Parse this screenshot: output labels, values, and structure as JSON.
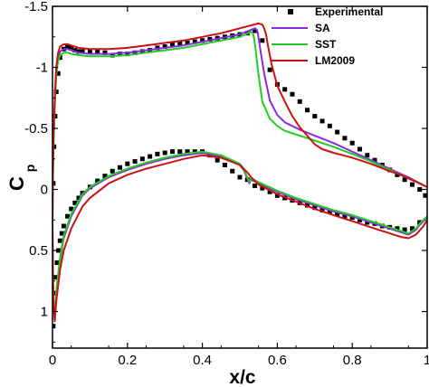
{
  "chart_data": {
    "type": "line",
    "xlabel": "x/c",
    "ylabel_main": "C",
    "ylabel_sub": "p",
    "xlim": [
      0,
      1
    ],
    "ylim": [
      1.3,
      -1.5
    ],
    "y_inverted": true,
    "grid": false,
    "legend_position": "top-right",
    "x_ticks": [
      0,
      0.2,
      0.4,
      0.6,
      0.8,
      1
    ],
    "x_tick_labels": [
      "0",
      "0.2",
      "0.4",
      "0.6",
      "0.8",
      "1"
    ],
    "y_ticks": [
      -1.5,
      -1,
      -0.5,
      0,
      0.5,
      1
    ],
    "y_tick_labels": [
      "-1.5",
      "-1",
      "-0.5",
      "0",
      "0.5",
      "1"
    ],
    "series": [
      {
        "name": "Experimental",
        "style": "markers",
        "color": "#000000",
        "x": [
          0.002,
          0.004,
          0.007,
          0.01,
          0.015,
          0.02,
          0.03,
          0.04,
          0.05,
          0.06,
          0.07,
          0.08,
          0.1,
          0.12,
          0.14,
          0.16,
          0.18,
          0.2,
          0.22,
          0.24,
          0.26,
          0.28,
          0.3,
          0.32,
          0.34,
          0.36,
          0.38,
          0.4,
          0.42,
          0.44,
          0.46,
          0.48,
          0.5,
          0.52,
          0.54,
          0.56,
          0.58,
          0.6,
          0.62,
          0.64,
          0.66,
          0.68,
          0.7,
          0.72,
          0.74,
          0.76,
          0.78,
          0.8,
          0.82,
          0.84,
          0.86,
          0.88,
          0.9,
          0.92,
          0.94,
          0.96,
          0.98,
          0.995,
          0.002,
          0.004,
          0.006,
          0.009,
          0.012,
          0.016,
          0.02,
          0.025,
          0.03,
          0.04,
          0.05,
          0.06,
          0.07,
          0.08,
          0.1,
          0.12,
          0.14,
          0.16,
          0.18,
          0.2,
          0.22,
          0.24,
          0.26,
          0.28,
          0.3,
          0.32,
          0.34,
          0.36,
          0.38,
          0.4,
          0.42,
          0.44,
          0.46,
          0.48,
          0.5,
          0.52,
          0.54,
          0.56,
          0.58,
          0.6,
          0.62,
          0.64,
          0.66,
          0.68,
          0.7,
          0.72,
          0.74,
          0.76,
          0.78,
          0.8,
          0.82,
          0.84,
          0.86,
          0.88,
          0.9,
          0.92,
          0.94,
          0.96,
          0.98
        ],
        "y": [
          -0.05,
          -0.35,
          -0.6,
          -0.8,
          -0.95,
          -1.08,
          -1.15,
          -1.17,
          -1.16,
          -1.14,
          -1.13,
          -1.13,
          -1.13,
          -1.13,
          -1.12,
          -1.1,
          -1.11,
          -1.11,
          -1.12,
          -1.13,
          -1.14,
          -1.16,
          -1.17,
          -1.19,
          -1.2,
          -1.2,
          -1.21,
          -1.22,
          -1.23,
          -1.24,
          -1.25,
          -1.26,
          -1.27,
          -1.28,
          -1.3,
          -1.22,
          -0.98,
          -0.86,
          -0.82,
          -0.78,
          -0.72,
          -0.65,
          -0.6,
          -0.56,
          -0.52,
          -0.47,
          -0.42,
          -0.38,
          -0.33,
          -0.28,
          -0.24,
          -0.2,
          -0.16,
          -0.12,
          -0.08,
          -0.04,
          0.0,
          0.05,
          1.12,
          0.98,
          0.85,
          0.72,
          0.6,
          0.5,
          0.42,
          0.36,
          0.3,
          0.22,
          0.16,
          0.11,
          0.07,
          0.03,
          -0.02,
          -0.07,
          -0.11,
          -0.15,
          -0.18,
          -0.21,
          -0.23,
          -0.25,
          -0.27,
          -0.29,
          -0.3,
          -0.31,
          -0.31,
          -0.31,
          -0.31,
          -0.31,
          -0.28,
          -0.24,
          -0.2,
          -0.15,
          -0.1,
          -0.08,
          -0.03,
          -0.01,
          0.02,
          0.05,
          0.07,
          0.09,
          0.11,
          0.13,
          0.15,
          0.17,
          0.18,
          0.2,
          0.22,
          0.23,
          0.25,
          0.27,
          0.28,
          0.3,
          0.31,
          0.32,
          0.33,
          0.32,
          0.27
        ]
      },
      {
        "name": "SA",
        "style": "line",
        "color": "#8a2be2",
        "x": [
          1.0,
          0.98,
          0.95,
          0.92,
          0.9,
          0.85,
          0.8,
          0.75,
          0.7,
          0.66,
          0.62,
          0.6,
          0.58,
          0.565,
          0.556,
          0.551,
          0.548,
          0.545,
          0.54,
          0.5,
          0.45,
          0.4,
          0.35,
          0.3,
          0.25,
          0.2,
          0.15,
          0.1,
          0.07,
          0.05,
          0.04,
          0.03,
          0.02,
          0.015,
          0.01,
          0.006,
          0.003,
          0.001,
          0.0,
          0.001,
          0.003,
          0.006,
          0.01,
          0.02,
          0.03,
          0.05,
          0.08,
          0.1,
          0.15,
          0.2,
          0.25,
          0.3,
          0.35,
          0.4,
          0.45,
          0.5,
          0.51,
          0.52,
          0.525,
          0.53,
          0.55,
          0.6,
          0.65,
          0.7,
          0.75,
          0.8,
          0.85,
          0.9,
          0.93,
          0.95,
          0.97,
          0.98,
          1.0
        ],
        "y": [
          -0.02,
          -0.05,
          -0.1,
          -0.14,
          -0.17,
          -0.24,
          -0.31,
          -0.38,
          -0.44,
          -0.49,
          -0.55,
          -0.61,
          -0.73,
          -0.95,
          -1.12,
          -1.22,
          -1.28,
          -1.31,
          -1.32,
          -1.27,
          -1.24,
          -1.21,
          -1.18,
          -1.16,
          -1.14,
          -1.12,
          -1.11,
          -1.11,
          -1.12,
          -1.14,
          -1.15,
          -1.15,
          -1.13,
          -1.08,
          -0.95,
          -0.7,
          -0.4,
          -0.1,
          0.3,
          0.72,
          0.96,
          1.06,
          0.85,
          0.58,
          0.4,
          0.22,
          0.05,
          -0.01,
          -0.1,
          -0.16,
          -0.21,
          -0.25,
          -0.28,
          -0.3,
          -0.27,
          -0.2,
          -0.16,
          -0.09,
          -0.05,
          -0.08,
          -0.05,
          0.02,
          0.08,
          0.13,
          0.18,
          0.22,
          0.27,
          0.32,
          0.35,
          0.37,
          0.33,
          0.29,
          0.23
        ]
      },
      {
        "name": "SST",
        "style": "line",
        "color": "#22cc22",
        "x": [
          1.0,
          0.98,
          0.95,
          0.92,
          0.9,
          0.85,
          0.8,
          0.75,
          0.7,
          0.66,
          0.62,
          0.6,
          0.58,
          0.56,
          0.548,
          0.542,
          0.538,
          0.535,
          0.53,
          0.5,
          0.45,
          0.4,
          0.35,
          0.3,
          0.25,
          0.2,
          0.15,
          0.1,
          0.07,
          0.05,
          0.04,
          0.03,
          0.02,
          0.015,
          0.01,
          0.006,
          0.003,
          0.001,
          0.0,
          0.001,
          0.003,
          0.006,
          0.01,
          0.02,
          0.03,
          0.05,
          0.08,
          0.1,
          0.15,
          0.2,
          0.25,
          0.3,
          0.35,
          0.4,
          0.45,
          0.5,
          0.51,
          0.52,
          0.525,
          0.53,
          0.55,
          0.6,
          0.65,
          0.7,
          0.75,
          0.8,
          0.85,
          0.9,
          0.93,
          0.95,
          0.97,
          0.98,
          1.0
        ],
        "y": [
          -0.02,
          -0.05,
          -0.09,
          -0.13,
          -0.16,
          -0.23,
          -0.29,
          -0.35,
          -0.4,
          -0.44,
          -0.48,
          -0.52,
          -0.58,
          -0.72,
          -0.98,
          -1.15,
          -1.24,
          -1.28,
          -1.29,
          -1.25,
          -1.22,
          -1.19,
          -1.16,
          -1.14,
          -1.12,
          -1.1,
          -1.09,
          -1.09,
          -1.1,
          -1.11,
          -1.12,
          -1.12,
          -1.1,
          -1.05,
          -0.93,
          -0.68,
          -0.38,
          -0.08,
          0.32,
          0.72,
          0.95,
          1.05,
          0.84,
          0.56,
          0.38,
          0.2,
          0.04,
          -0.02,
          -0.11,
          -0.17,
          -0.22,
          -0.26,
          -0.29,
          -0.31,
          -0.28,
          -0.21,
          -0.17,
          -0.1,
          -0.06,
          -0.09,
          -0.06,
          0.01,
          0.07,
          0.12,
          0.17,
          0.21,
          0.26,
          0.31,
          0.34,
          0.36,
          0.32,
          0.28,
          0.22
        ]
      },
      {
        "name": "LM2009",
        "style": "line",
        "color": "#cc1111",
        "x": [
          1.0,
          0.98,
          0.95,
          0.92,
          0.9,
          0.85,
          0.8,
          0.75,
          0.72,
          0.7,
          0.68,
          0.66,
          0.64,
          0.62,
          0.6,
          0.585,
          0.575,
          0.57,
          0.565,
          0.56,
          0.55,
          0.5,
          0.45,
          0.4,
          0.35,
          0.3,
          0.25,
          0.2,
          0.15,
          0.1,
          0.07,
          0.05,
          0.04,
          0.03,
          0.02,
          0.015,
          0.01,
          0.006,
          0.003,
          0.001,
          0.0,
          0.001,
          0.003,
          0.006,
          0.01,
          0.02,
          0.03,
          0.05,
          0.08,
          0.1,
          0.15,
          0.2,
          0.25,
          0.3,
          0.35,
          0.4,
          0.45,
          0.5,
          0.52,
          0.53,
          0.54,
          0.55,
          0.6,
          0.65,
          0.7,
          0.75,
          0.8,
          0.85,
          0.9,
          0.93,
          0.95,
          0.97,
          0.99,
          1.0
        ],
        "y": [
          -0.02,
          -0.05,
          -0.09,
          -0.13,
          -0.15,
          -0.21,
          -0.26,
          -0.3,
          -0.33,
          -0.37,
          -0.44,
          -0.51,
          -0.6,
          -0.72,
          -0.85,
          -1.02,
          -1.18,
          -1.27,
          -1.32,
          -1.35,
          -1.36,
          -1.32,
          -1.28,
          -1.25,
          -1.22,
          -1.2,
          -1.18,
          -1.16,
          -1.15,
          -1.15,
          -1.16,
          -1.18,
          -1.19,
          -1.19,
          -1.17,
          -1.12,
          -1.0,
          -0.75,
          -0.45,
          -0.15,
          0.25,
          0.68,
          0.94,
          1.08,
          0.92,
          0.66,
          0.5,
          0.32,
          0.14,
          0.07,
          -0.05,
          -0.12,
          -0.17,
          -0.21,
          -0.25,
          -0.28,
          -0.26,
          -0.2,
          -0.14,
          -0.1,
          -0.07,
          -0.04,
          0.04,
          0.1,
          0.16,
          0.21,
          0.26,
          0.31,
          0.36,
          0.39,
          0.4,
          0.37,
          0.3,
          0.25
        ]
      }
    ]
  }
}
